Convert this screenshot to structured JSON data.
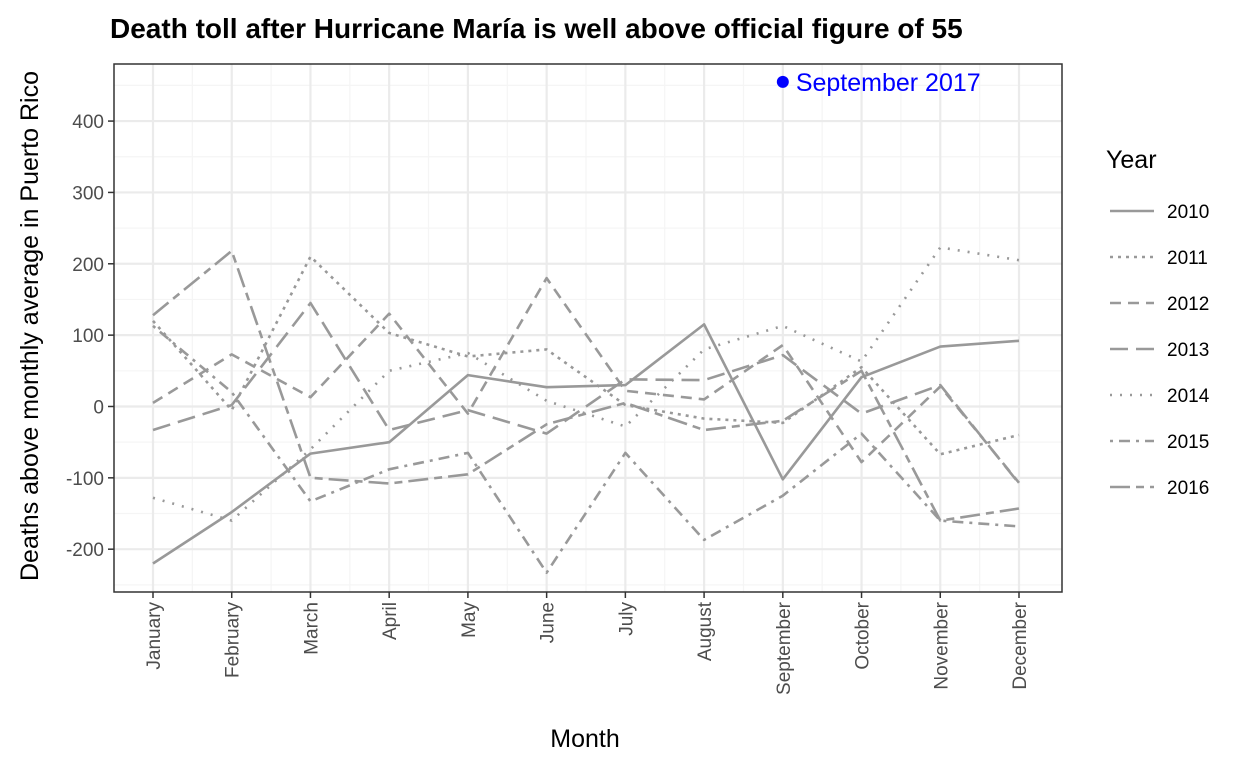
{
  "chart_data": {
    "type": "line",
    "title": "Death toll after Hurricane María is well above official figure of 55",
    "xlabel": "Month",
    "ylabel": "Deaths above monthly average in Puerto Rico",
    "categories": [
      "January",
      "February",
      "March",
      "April",
      "May",
      "June",
      "July",
      "August",
      "September",
      "October",
      "November",
      "December"
    ],
    "ylim": [
      -260,
      480
    ],
    "yticks": [
      -200,
      -100,
      0,
      100,
      200,
      300,
      400
    ],
    "grid": true,
    "legend": {
      "title": "Year",
      "position": "right"
    },
    "series": [
      {
        "name": "2010",
        "line_style": "solid",
        "values": [
          -220,
          -148,
          -66,
          -50,
          44,
          27,
          30,
          115,
          -102,
          41,
          84,
          92
        ]
      },
      {
        "name": "2011",
        "line_style": "dotted",
        "values": [
          120,
          -5,
          210,
          103,
          70,
          80,
          2,
          -17,
          -23,
          55,
          -67,
          -40
        ]
      },
      {
        "name": "2012",
        "line_style": "dashed",
        "values": [
          5,
          73,
          13,
          130,
          -10,
          180,
          22,
          10,
          86,
          -78,
          28,
          -107
        ]
      },
      {
        "name": "2013",
        "line_style": "longdash",
        "values": [
          -33,
          2,
          145,
          -33,
          -5,
          -38,
          38,
          37,
          72,
          -10,
          30,
          -108
        ]
      },
      {
        "name": "2014",
        "line_style": "dotted-sparse",
        "values": [
          -128,
          -160,
          -60,
          50,
          75,
          8,
          -28,
          80,
          113,
          63,
          223,
          205
        ]
      },
      {
        "name": "2015",
        "line_style": "dotdash",
        "values": [
          113,
          20,
          -133,
          -88,
          -65,
          -233,
          -65,
          -187,
          -125,
          -38,
          -160,
          -168
        ]
      },
      {
        "name": "2016",
        "line_style": "twodash",
        "values": [
          128,
          218,
          -100,
          -108,
          -95,
          -25,
          5,
          -33,
          -20,
          50,
          -160,
          -143
        ]
      }
    ],
    "annotation": {
      "label": "September 2017",
      "x": "September",
      "y": 455
    },
    "colors": {
      "series": "#999999",
      "annotation": "#0000ff",
      "grid_major": "#ebebeb",
      "grid_minor": "#f5f5f5",
      "panel_border": "#333333"
    }
  }
}
